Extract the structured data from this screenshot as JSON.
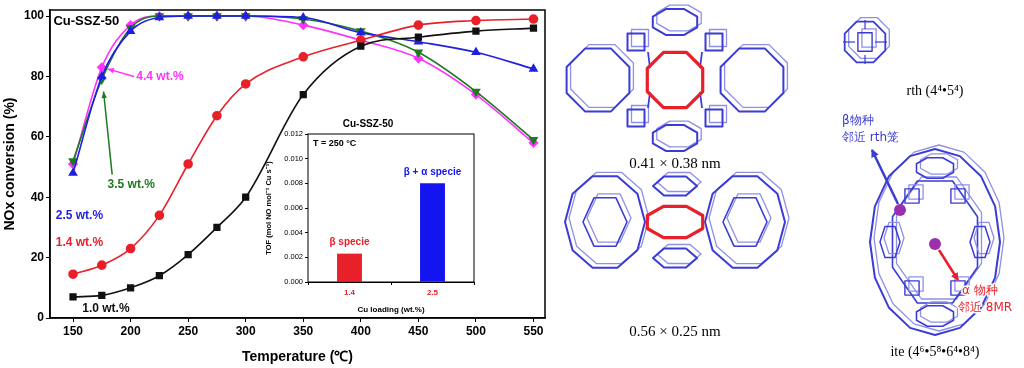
{
  "chart_data": [
    {
      "type": "line",
      "title": "Cu-SSZ-50",
      "x_label": "Temperature (℃)",
      "y_label": "NOx conversion (%)",
      "x": [
        150,
        175,
        200,
        225,
        250,
        275,
        300,
        350,
        400,
        450,
        500,
        550
      ],
      "series": [
        {
          "name": "1.0 wt.%",
          "color": "#111111",
          "marker": "square",
          "values": [
            7,
            7.5,
            10,
            14,
            21,
            30,
            40,
            74,
            90,
            93,
            95,
            96
          ]
        },
        {
          "name": "1.4 wt.%",
          "color": "#e8202a",
          "marker": "circle",
          "values": [
            14.5,
            17.5,
            23,
            34,
            51,
            67,
            77.5,
            86.5,
            92,
            97,
            98.5,
            99
          ]
        },
        {
          "name": "2.5 wt.%",
          "color": "#1f1fe0",
          "marker": "triangle",
          "values": [
            48,
            80,
            95,
            99.5,
            100,
            100,
            100,
            99.5,
            94.5,
            91.5,
            88,
            82.5
          ]
        },
        {
          "name": "3.5 wt.%",
          "color": "#1f7a1f",
          "marker": "triangle-down",
          "values": [
            52,
            79,
            96,
            100,
            100,
            100,
            100,
            99,
            95,
            88,
            75,
            59
          ]
        },
        {
          "name": "4.4 wt.%",
          "color": "#ff33ff",
          "marker": "diamond",
          "values": [
            51,
            83,
            97,
            100,
            100,
            100,
            100,
            97,
            92,
            86,
            74,
            58
          ]
        }
      ],
      "xlim": [
        130,
        560
      ],
      "xticks": [
        150,
        200,
        250,
        300,
        350,
        400,
        450,
        500,
        550
      ],
      "ylim": [
        0,
        102
      ],
      "yticks": [
        0,
        20,
        40,
        60,
        80,
        100
      ],
      "grid": false
    },
    {
      "type": "bar",
      "title": "Cu-SSZ-50",
      "subtitle": "T = 250 °C",
      "x_label": "Cu loading (wt.%)",
      "y_label": "TOF (mol NO mol⁻¹ Cu s⁻¹)",
      "categories": [
        "1.4",
        "2.5"
      ],
      "values": [
        0.0023,
        0.008
      ],
      "colors": [
        "#e8202a",
        "#1414f0"
      ],
      "annotations": [
        "β specie",
        "β + α specie"
      ],
      "ylim": [
        0,
        0.012
      ],
      "yticks": [
        {
          "value": 0,
          "label": "0.000"
        },
        {
          "value": 0.002,
          "label": "0.002"
        },
        {
          "value": 0.004,
          "label": "0.004"
        },
        {
          "value": 0.006,
          "label": "0.006"
        },
        {
          "value": 0.008,
          "label": "0.008"
        },
        {
          "value": 0.01,
          "label": "0.010"
        },
        {
          "value": 0.012,
          "label": "0.012"
        }
      ],
      "grid": false
    }
  ],
  "structures": {
    "pores": [
      {
        "size": "0.41 × 0.38 nm"
      },
      {
        "size": "0.56 × 0.25 nm"
      }
    ],
    "cages": [
      {
        "label": "rth (4⁴•5⁴)"
      },
      {
        "label": "ite (4⁶•5⁸•6⁴•8⁴)"
      }
    ],
    "sites": [
      {
        "name": "β物种",
        "note": "邻近 rth笼"
      },
      {
        "name": "α 物种",
        "note": "邻近 8MR"
      }
    ]
  }
}
